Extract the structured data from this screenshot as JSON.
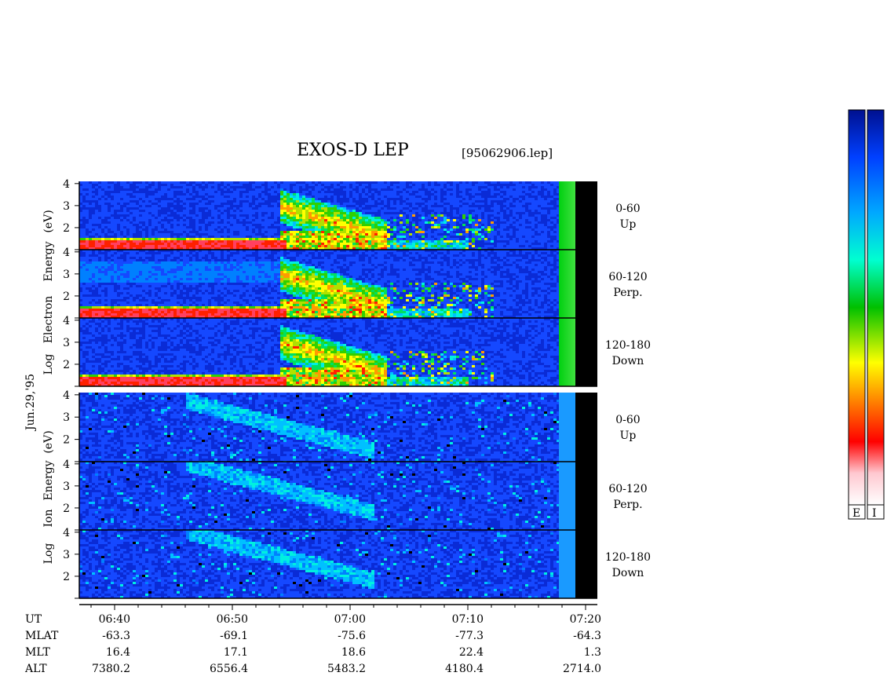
{
  "title": "EXOS-D LEP",
  "file_label": "[95062906.lep]",
  "date_label": "Jun.29,'95",
  "electron_axis_words": [
    "Energy",
    "Electron",
    "Log",
    "(eV)"
  ],
  "ion_axis_words": [
    "Energy",
    "Ion",
    "Log",
    "(eV)"
  ],
  "tick_labels": [
    "4",
    "3",
    "2"
  ],
  "colorbar_labels": [
    "E",
    "I"
  ],
  "colors": {
    "background_spectrogram": "#0a2bd6",
    "black_gap": "#000000"
  },
  "chart_data": {
    "type": "heatmap",
    "instrument": "EXOS-D LEP",
    "y_axis": {
      "label": "Log Energy (eV)",
      "ticks": [
        2,
        3,
        4
      ],
      "range": [
        1,
        4.1
      ]
    },
    "x_axis": {
      "ticks": [
        "06:40",
        "06:50",
        "07:00",
        "07:10",
        "07:20"
      ],
      "range_minutes_utc": [
        "06:37",
        "07:21"
      ]
    },
    "panels": [
      {
        "species": "Electron",
        "pitch": "0-60",
        "direction": "Up"
      },
      {
        "species": "Electron",
        "pitch": "60-120",
        "direction": "Perp."
      },
      {
        "species": "Electron",
        "pitch": "120-180",
        "direction": "Down"
      },
      {
        "species": "Ion",
        "pitch": "0-60",
        "direction": "Up"
      },
      {
        "species": "Ion",
        "pitch": "60-120",
        "direction": "Perp."
      },
      {
        "species": "Ion",
        "pitch": "120-180",
        "direction": "Down"
      }
    ],
    "ephemeris": {
      "rows": [
        {
          "name": "UT",
          "values": [
            "06:40",
            "06:50",
            "07:00",
            "07:10",
            "07:20"
          ]
        },
        {
          "name": "MLAT",
          "values": [
            "-63.3",
            "-69.1",
            "-75.6",
            "-77.3",
            "-64.3"
          ]
        },
        {
          "name": "MLT",
          "values": [
            "16.4",
            "17.1",
            "18.6",
            "22.4",
            "1.3"
          ]
        },
        {
          "name": "ALT",
          "values": [
            "7380.2",
            "6556.4",
            "5483.2",
            "4180.4",
            "2714.0"
          ]
        }
      ]
    },
    "colorbar": {
      "labels": [
        "E",
        "I"
      ],
      "colormap": [
        "#ffffff",
        "#ffc0cb",
        "#ff0000",
        "#ff8c00",
        "#ffff00",
        "#00c800",
        "#00ffff",
        "#00a0ff",
        "#0050ff",
        "#0010a0"
      ]
    }
  }
}
